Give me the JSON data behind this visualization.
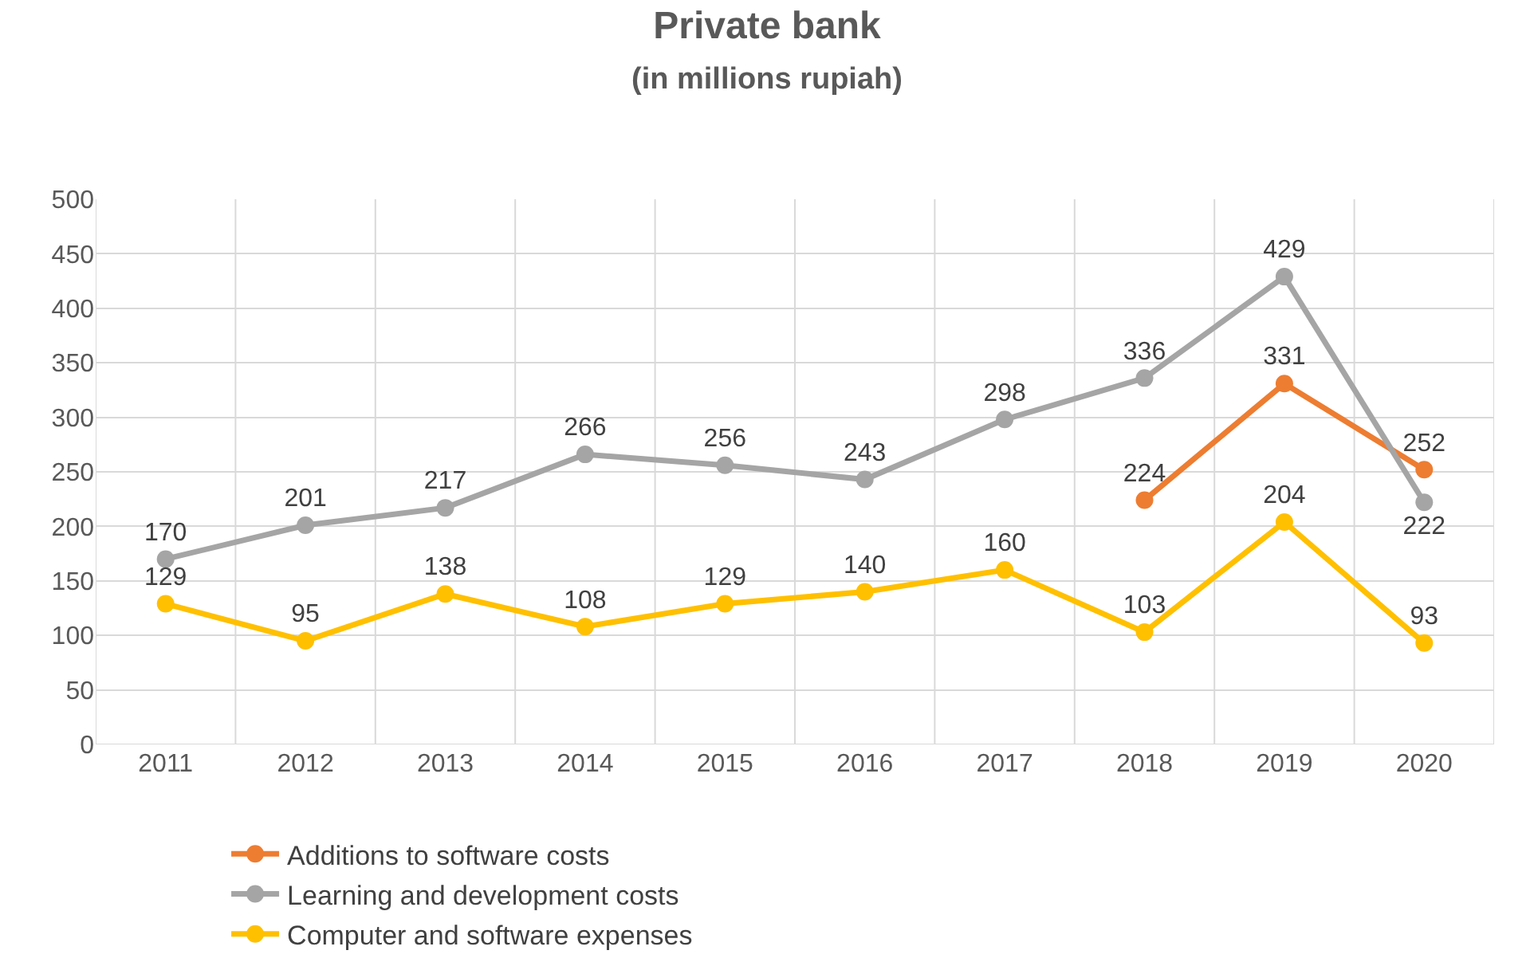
{
  "chart_data": {
    "type": "line",
    "title": "Private bank",
    "subtitle": "(in millions rupiah)",
    "categories": [
      "2011",
      "2012",
      "2013",
      "2014",
      "2015",
      "2016",
      "2017",
      "2018",
      "2019",
      "2020"
    ],
    "series": [
      {
        "name": "Additions to software costs",
        "color": "#ed7d31",
        "values": [
          null,
          null,
          null,
          null,
          null,
          null,
          null,
          224,
          331,
          252
        ]
      },
      {
        "name": "Learning and development costs",
        "color": "#a5a5a5",
        "values": [
          170,
          201,
          217,
          266,
          256,
          243,
          298,
          336,
          429,
          222
        ]
      },
      {
        "name": "Computer and software expenses",
        "color": "#ffc000",
        "values": [
          129,
          95,
          138,
          108,
          129,
          140,
          160,
          103,
          204,
          93
        ]
      }
    ],
    "ylim": [
      0,
      500
    ],
    "yticks": [
      0,
      50,
      100,
      150,
      200,
      250,
      300,
      350,
      400,
      450,
      500
    ],
    "grid": true,
    "legend": "bottom",
    "marker": "circle",
    "line_style": "solid",
    "data_labels": true
  }
}
